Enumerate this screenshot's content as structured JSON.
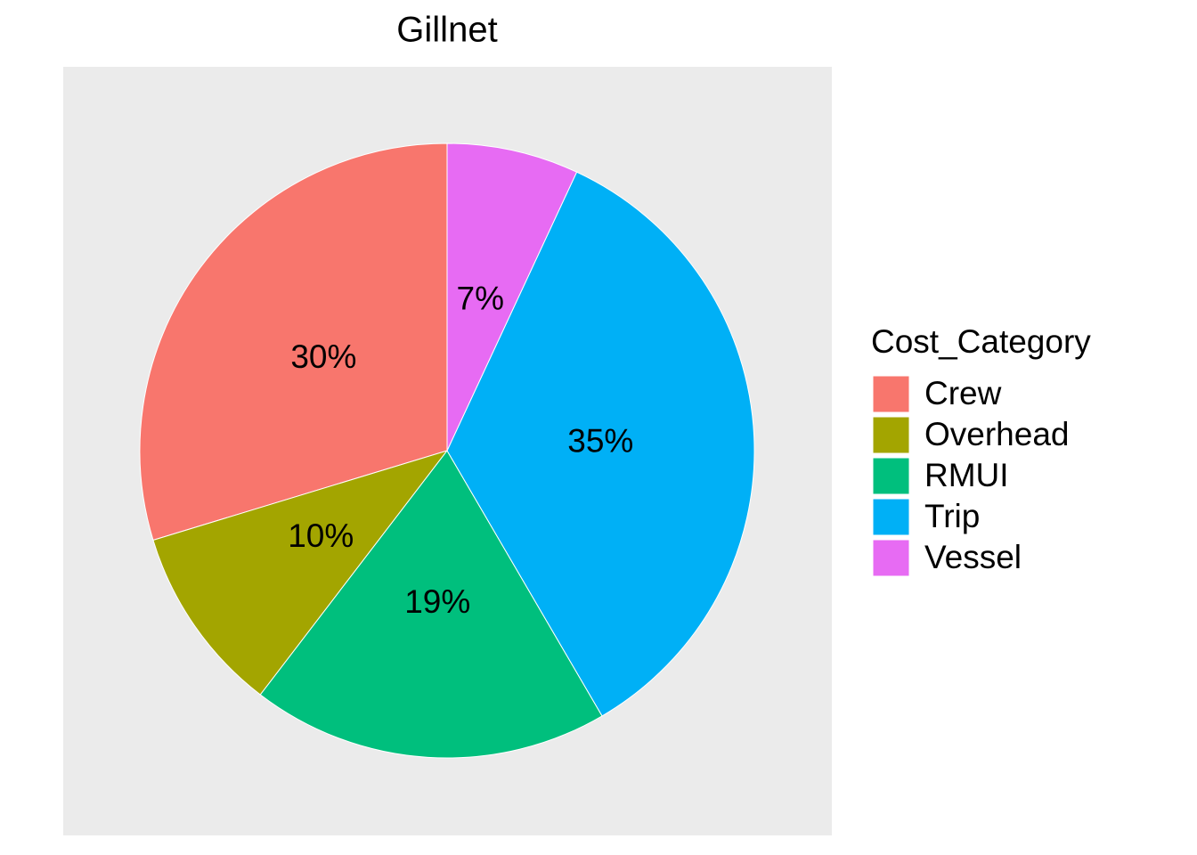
{
  "chart_data": {
    "type": "pie",
    "title": "Gillnet",
    "legend_title": "Cost_Category",
    "categories": [
      "Crew",
      "Overhead",
      "RMUI",
      "Trip",
      "Vessel"
    ],
    "values": [
      30,
      10,
      19,
      35,
      7
    ],
    "value_labels": [
      "30%",
      "10%",
      "19%",
      "35%",
      "7%"
    ],
    "colors": [
      "#f8766d",
      "#a3a500",
      "#00bf7d",
      "#00b0f6",
      "#e76bf3"
    ],
    "legend": "right"
  }
}
